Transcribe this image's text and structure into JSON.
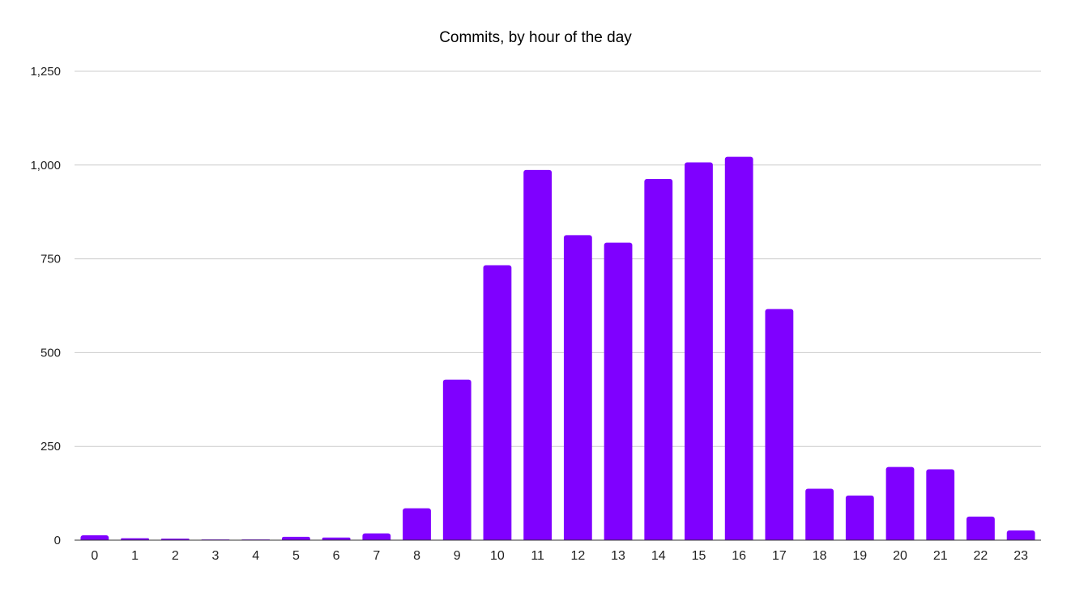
{
  "chart_data": {
    "type": "bar",
    "title": "Commits, by hour of the day",
    "xlabel": "",
    "ylabel": "",
    "categories": [
      "0",
      "1",
      "2",
      "3",
      "4",
      "5",
      "6",
      "7",
      "8",
      "9",
      "10",
      "11",
      "12",
      "13",
      "14",
      "15",
      "16",
      "17",
      "18",
      "19",
      "20",
      "21",
      "22",
      "23"
    ],
    "values": [
      13,
      5,
      4,
      2,
      2,
      9,
      7,
      18,
      85,
      428,
      733,
      987,
      813,
      793,
      963,
      1007,
      1022,
      616,
      137,
      119,
      195,
      189,
      63,
      26
    ],
    "ylim": [
      0,
      1250
    ],
    "yticks": [
      0,
      250,
      500,
      750,
      1000,
      1250
    ],
    "ytick_labels": [
      "0",
      "250",
      "500",
      "750",
      "1,000",
      "1,250"
    ],
    "grid": true,
    "legend": "none",
    "bar_color": "#7f00ff",
    "gridline_color": "#cccccc",
    "axis_color": "#333333"
  }
}
